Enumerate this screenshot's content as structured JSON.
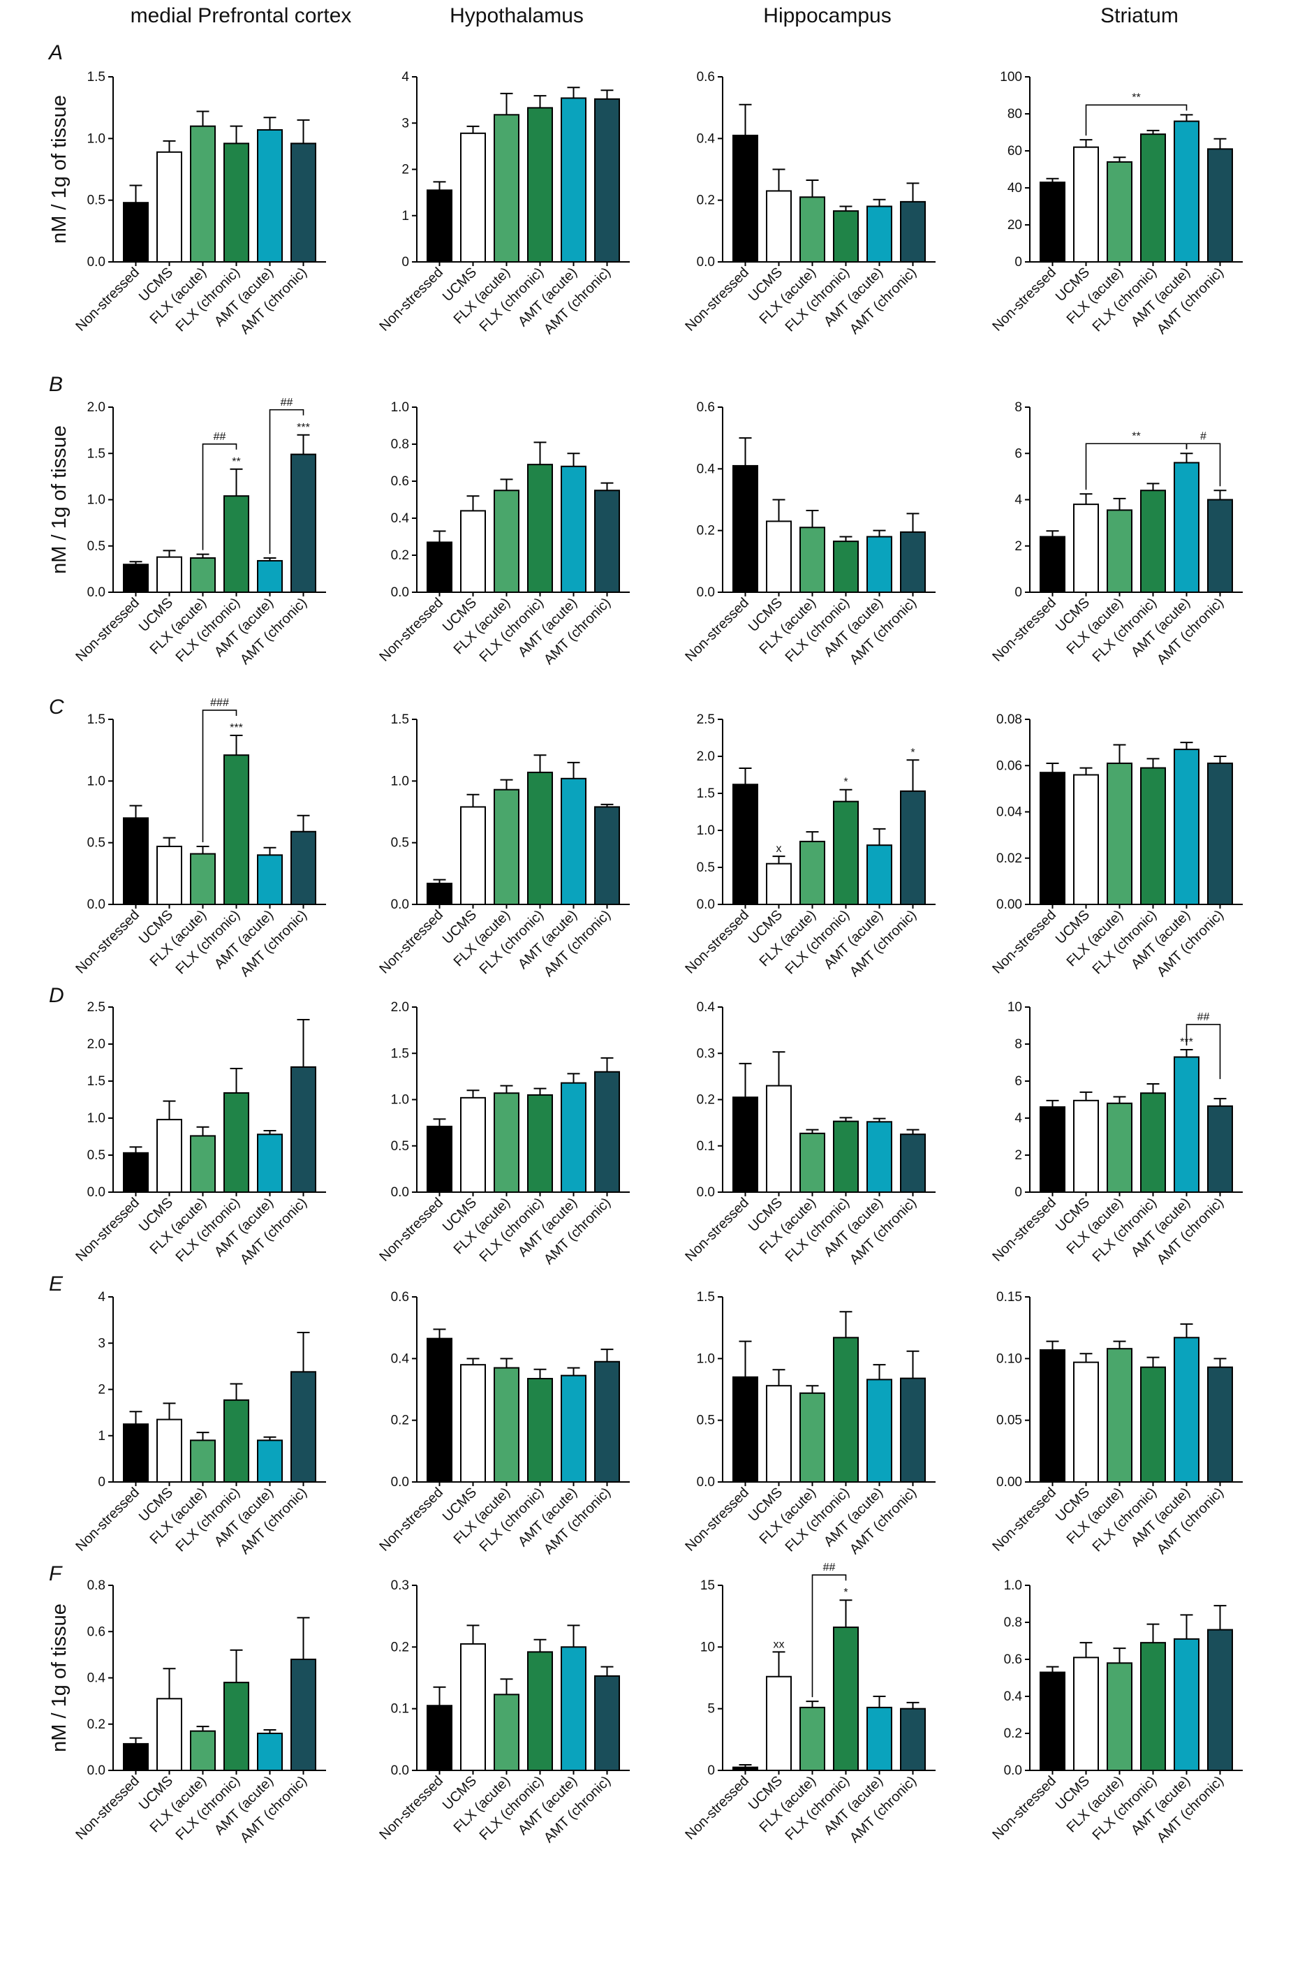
{
  "region_titles": [
    "medial Prefrontal cortex",
    "Hypothalamus",
    "Hippocampus",
    "Striatum"
  ],
  "ylabel": "nM / 1g of tissue",
  "colors": {
    "Non-stressed": "#000000",
    "UCMS": "#ffffff",
    "FLX (acute)": "#4aa66b",
    "FLX (chronic)": "#208448",
    "AMT (acute)": "#0aa3bd",
    "AMT (chronic)": "#1a4e5a"
  },
  "chart_data": [
    {
      "type": "bar",
      "row": "A",
      "region": "medial Prefrontal cortex",
      "ylabel": "nM / 1g of tissue",
      "categories": [
        "Non-stressed",
        "UCMS",
        "FLX (acute)",
        "FLX (chronic)",
        "AMT (acute)",
        "AMT (chronic)"
      ],
      "values": [
        0.48,
        0.89,
        1.1,
        0.96,
        1.07,
        0.96
      ],
      "errors": [
        0.14,
        0.09,
        0.12,
        0.14,
        0.1,
        0.19
      ],
      "ylim": [
        0,
        1.5
      ],
      "yticks": [
        "0.0",
        "0.5",
        "1.0",
        "1.5"
      ],
      "annotations": [],
      "brackets": []
    },
    {
      "type": "bar",
      "row": "A",
      "region": "Hypothalamus",
      "categories": [
        "Non-stressed",
        "UCMS",
        "FLX (acute)",
        "FLX (chronic)",
        "AMT (acute)",
        "AMT (chronic)"
      ],
      "values": [
        1.55,
        2.78,
        3.18,
        3.33,
        3.54,
        3.52
      ],
      "errors": [
        0.18,
        0.15,
        0.46,
        0.26,
        0.23,
        0.19
      ],
      "ylim": [
        0,
        4
      ],
      "yticks": [
        "0",
        "1",
        "2",
        "3",
        "4"
      ],
      "annotations": [],
      "brackets": []
    },
    {
      "type": "bar",
      "row": "A",
      "region": "Hippocampus",
      "categories": [
        "Non-stressed",
        "UCMS",
        "FLX (acute)",
        "FLX (chronic)",
        "AMT (acute)",
        "AMT (chronic)"
      ],
      "values": [
        0.41,
        0.23,
        0.21,
        0.165,
        0.18,
        0.195
      ],
      "errors": [
        0.1,
        0.07,
        0.055,
        0.015,
        0.022,
        0.06
      ],
      "ylim": [
        0,
        0.6
      ],
      "yticks": [
        "0.0",
        "0.2",
        "0.4",
        "0.6"
      ],
      "annotations": [],
      "brackets": []
    },
    {
      "type": "bar",
      "row": "A",
      "region": "Striatum",
      "categories": [
        "Non-stressed",
        "UCMS",
        "FLX (acute)",
        "FLX (chronic)",
        "AMT (acute)",
        "AMT (chronic)"
      ],
      "values": [
        43,
        62,
        54,
        69,
        76,
        61
      ],
      "errors": [
        2,
        4,
        2.5,
        2,
        3.5,
        5.5
      ],
      "ylim": [
        0,
        100
      ],
      "yticks": [
        "0",
        "20",
        "40",
        "60",
        "80",
        "100"
      ],
      "annotations": [],
      "brackets": [
        {
          "from": 1,
          "to": 4,
          "label": "**"
        }
      ]
    },
    {
      "type": "bar",
      "row": "B",
      "region": "medial Prefrontal cortex",
      "ylabel": "nM / 1g of tissue",
      "categories": [
        "Non-stressed",
        "UCMS",
        "FLX (acute)",
        "FLX (chronic)",
        "AMT (acute)",
        "AMT (chronic)"
      ],
      "values": [
        0.3,
        0.38,
        0.37,
        1.04,
        0.34,
        1.49
      ],
      "errors": [
        0.03,
        0.07,
        0.04,
        0.29,
        0.03,
        0.21
      ],
      "ylim": [
        0,
        2.0
      ],
      "yticks": [
        "0.0",
        "0.5",
        "1.0",
        "1.5",
        "2.0"
      ],
      "annotations": [
        {
          "bar": 3,
          "label": "**"
        },
        {
          "bar": 5,
          "label": "***"
        }
      ],
      "brackets": [
        {
          "from": 2,
          "to": 3,
          "label": "##"
        },
        {
          "from": 4,
          "to": 5,
          "label": "##"
        }
      ]
    },
    {
      "type": "bar",
      "row": "B",
      "region": "Hypothalamus",
      "categories": [
        "Non-stressed",
        "UCMS",
        "FLX (acute)",
        "FLX (chronic)",
        "AMT (acute)",
        "AMT (chronic)"
      ],
      "values": [
        0.27,
        0.44,
        0.55,
        0.69,
        0.68,
        0.55
      ],
      "errors": [
        0.06,
        0.08,
        0.06,
        0.12,
        0.07,
        0.04
      ],
      "ylim": [
        0,
        1.0
      ],
      "yticks": [
        "0.0",
        "0.2",
        "0.4",
        "0.6",
        "0.8",
        "1.0"
      ],
      "annotations": [],
      "brackets": []
    },
    {
      "type": "bar",
      "row": "B",
      "region": "Hippocampus",
      "categories": [
        "Non-stressed",
        "UCMS",
        "FLX (acute)",
        "FLX (chronic)",
        "AMT (acute)",
        "AMT (chronic)"
      ],
      "values": [
        0.41,
        0.23,
        0.21,
        0.165,
        0.18,
        0.195
      ],
      "errors": [
        0.09,
        0.07,
        0.055,
        0.015,
        0.02,
        0.06
      ],
      "ylim": [
        0,
        0.6
      ],
      "yticks": [
        "0.0",
        "0.2",
        "0.4",
        "0.6"
      ],
      "annotations": [],
      "brackets": []
    },
    {
      "type": "bar",
      "row": "B",
      "region": "Striatum",
      "categories": [
        "Non-stressed",
        "UCMS",
        "FLX (acute)",
        "FLX (chronic)",
        "AMT (acute)",
        "AMT (chronic)"
      ],
      "values": [
        2.4,
        3.8,
        3.55,
        4.4,
        5.6,
        4.0
      ],
      "errors": [
        0.25,
        0.45,
        0.5,
        0.3,
        0.4,
        0.4
      ],
      "ylim": [
        0,
        8
      ],
      "yticks": [
        "0",
        "2",
        "4",
        "6",
        "8"
      ],
      "annotations": [],
      "brackets": [
        {
          "from": 1,
          "to": 4,
          "label": "**"
        },
        {
          "from": 4,
          "to": 5,
          "label": "#"
        }
      ]
    },
    {
      "type": "bar",
      "row": "C",
      "region": "medial Prefrontal cortex",
      "categories": [
        "Non-stressed",
        "UCMS",
        "FLX (acute)",
        "FLX (chronic)",
        "AMT (acute)",
        "AMT (chronic)"
      ],
      "values": [
        0.7,
        0.47,
        0.41,
        1.21,
        0.4,
        0.59
      ],
      "errors": [
        0.1,
        0.07,
        0.06,
        0.16,
        0.06,
        0.13
      ],
      "ylim": [
        0,
        1.5
      ],
      "yticks": [
        "0.0",
        "0.5",
        "1.0",
        "1.5"
      ],
      "annotations": [
        {
          "bar": 3,
          "label": "***"
        }
      ],
      "brackets": [
        {
          "from": 2,
          "to": 3,
          "label": "###"
        }
      ]
    },
    {
      "type": "bar",
      "row": "C",
      "region": "Hypothalamus",
      "categories": [
        "Non-stressed",
        "UCMS",
        "FLX (acute)",
        "FLX (chronic)",
        "AMT (acute)",
        "AMT (chronic)"
      ],
      "values": [
        0.17,
        0.79,
        0.93,
        1.07,
        1.02,
        0.79
      ],
      "errors": [
        0.03,
        0.1,
        0.08,
        0.14,
        0.13,
        0.02
      ],
      "ylim": [
        0,
        1.5
      ],
      "yticks": [
        "0.0",
        "0.5",
        "1.0",
        "1.5"
      ],
      "annotations": [],
      "brackets": []
    },
    {
      "type": "bar",
      "row": "C",
      "region": "Hippocampus",
      "categories": [
        "Non-stressed",
        "UCMS",
        "FLX (acute)",
        "FLX (chronic)",
        "AMT (acute)",
        "AMT (chronic)"
      ],
      "values": [
        1.62,
        0.55,
        0.85,
        1.39,
        0.8,
        1.53
      ],
      "errors": [
        0.22,
        0.1,
        0.13,
        0.16,
        0.22,
        0.42
      ],
      "ylim": [
        0,
        2.5
      ],
      "yticks": [
        "0.0",
        "0.5",
        "1.0",
        "1.5",
        "2.0",
        "2.5"
      ],
      "annotations": [
        {
          "bar": 1,
          "label": "x"
        },
        {
          "bar": 3,
          "label": "*"
        },
        {
          "bar": 5,
          "label": "*"
        }
      ],
      "brackets": []
    },
    {
      "type": "bar",
      "row": "C",
      "region": "Striatum",
      "categories": [
        "Non-stressed",
        "UCMS",
        "FLX (acute)",
        "FLX (chronic)",
        "AMT (acute)",
        "AMT (chronic)"
      ],
      "values": [
        0.057,
        0.056,
        0.061,
        0.059,
        0.067,
        0.061
      ],
      "errors": [
        0.004,
        0.003,
        0.008,
        0.004,
        0.003,
        0.003
      ],
      "ylim": [
        0,
        0.08
      ],
      "yticks": [
        "0.00",
        "0.02",
        "0.04",
        "0.06",
        "0.08"
      ],
      "annotations": [],
      "brackets": []
    },
    {
      "type": "bar",
      "row": "D",
      "region": "medial Prefrontal cortex",
      "categories": [
        "Non-stressed",
        "UCMS",
        "FLX (acute)",
        "FLX (chronic)",
        "AMT (acute)",
        "AMT (chronic)"
      ],
      "values": [
        0.53,
        0.98,
        0.76,
        1.34,
        0.78,
        1.69
      ],
      "errors": [
        0.08,
        0.25,
        0.12,
        0.33,
        0.05,
        0.64
      ],
      "ylim": [
        0,
        2.5
      ],
      "yticks": [
        "0.0",
        "0.5",
        "1.0",
        "1.5",
        "2.0",
        "2.5"
      ],
      "annotations": [],
      "brackets": []
    },
    {
      "type": "bar",
      "row": "D",
      "region": "Hypothalamus",
      "categories": [
        "Non-stressed",
        "UCMS",
        "FLX (acute)",
        "FLX (chronic)",
        "AMT (acute)",
        "AMT (chronic)"
      ],
      "values": [
        0.71,
        1.02,
        1.07,
        1.05,
        1.18,
        1.3
      ],
      "errors": [
        0.08,
        0.08,
        0.08,
        0.07,
        0.1,
        0.15
      ],
      "ylim": [
        0,
        2.0
      ],
      "yticks": [
        "0.0",
        "0.5",
        "1.0",
        "1.5",
        "2.0"
      ],
      "annotations": [],
      "brackets": []
    },
    {
      "type": "bar",
      "row": "D",
      "region": "Hippocampus",
      "categories": [
        "Non-stressed",
        "UCMS",
        "FLX (acute)",
        "FLX (chronic)",
        "AMT (acute)",
        "AMT (chronic)"
      ],
      "values": [
        0.205,
        0.23,
        0.127,
        0.153,
        0.152,
        0.125
      ],
      "errors": [
        0.073,
        0.073,
        0.008,
        0.008,
        0.007,
        0.01
      ],
      "ylim": [
        0,
        0.4
      ],
      "yticks": [
        "0.0",
        "0.1",
        "0.2",
        "0.3",
        "0.4"
      ],
      "annotations": [],
      "brackets": []
    },
    {
      "type": "bar",
      "row": "D",
      "region": "Striatum",
      "categories": [
        "Non-stressed",
        "UCMS",
        "FLX (acute)",
        "FLX (chronic)",
        "AMT (acute)",
        "AMT (chronic)"
      ],
      "values": [
        4.6,
        4.95,
        4.8,
        5.35,
        7.3,
        4.65
      ],
      "errors": [
        0.35,
        0.45,
        0.35,
        0.5,
        0.4,
        0.4
      ],
      "ylim": [
        0,
        10
      ],
      "yticks": [
        "0",
        "2",
        "4",
        "6",
        "8",
        "10"
      ],
      "annotations": [
        {
          "bar": 4,
          "label": "***"
        }
      ],
      "brackets": [
        {
          "from": 4,
          "to": 5,
          "label": "##"
        }
      ]
    },
    {
      "type": "bar",
      "row": "E",
      "region": "medial Prefrontal cortex",
      "categories": [
        "Non-stressed",
        "UCMS",
        "FLX (acute)",
        "FLX (chronic)",
        "AMT (acute)",
        "AMT (chronic)"
      ],
      "values": [
        1.25,
        1.35,
        0.9,
        1.77,
        0.9,
        2.38
      ],
      "errors": [
        0.27,
        0.35,
        0.17,
        0.35,
        0.07,
        0.85
      ],
      "ylim": [
        0,
        4
      ],
      "yticks": [
        "0",
        "1",
        "2",
        "3",
        "4"
      ],
      "annotations": [],
      "brackets": []
    },
    {
      "type": "bar",
      "row": "E",
      "region": "Hypothalamus",
      "categories": [
        "Non-stressed",
        "UCMS",
        "FLX (acute)",
        "FLX (chronic)",
        "AMT (acute)",
        "AMT (chronic)"
      ],
      "values": [
        0.465,
        0.38,
        0.37,
        0.335,
        0.345,
        0.39
      ],
      "errors": [
        0.03,
        0.02,
        0.03,
        0.03,
        0.025,
        0.04
      ],
      "ylim": [
        0,
        0.6
      ],
      "yticks": [
        "0.0",
        "0.2",
        "0.4",
        "0.6"
      ],
      "annotations": [],
      "brackets": []
    },
    {
      "type": "bar",
      "row": "E",
      "region": "Hippocampus",
      "categories": [
        "Non-stressed",
        "UCMS",
        "FLX (acute)",
        "FLX (chronic)",
        "AMT (acute)",
        "AMT (chronic)"
      ],
      "values": [
        0.85,
        0.78,
        0.72,
        1.17,
        0.83,
        0.84
      ],
      "errors": [
        0.29,
        0.13,
        0.06,
        0.21,
        0.12,
        0.22
      ],
      "ylim": [
        0,
        1.5
      ],
      "yticks": [
        "0.0",
        "0.5",
        "1.0",
        "1.5"
      ],
      "annotations": [],
      "brackets": []
    },
    {
      "type": "bar",
      "row": "E",
      "region": "Striatum",
      "categories": [
        "Non-stressed",
        "UCMS",
        "FLX (acute)",
        "FLX (chronic)",
        "AMT (acute)",
        "AMT (chronic)"
      ],
      "values": [
        0.107,
        0.097,
        0.108,
        0.093,
        0.117,
        0.093
      ],
      "errors": [
        0.007,
        0.007,
        0.006,
        0.008,
        0.011,
        0.007
      ],
      "ylim": [
        0,
        0.15
      ],
      "yticks": [
        "0.00",
        "0.05",
        "0.10",
        "0.15"
      ],
      "annotations": [],
      "brackets": []
    },
    {
      "type": "bar",
      "row": "F",
      "region": "medial Prefrontal cortex",
      "ylabel": "nM / 1g of tissue",
      "categories": [
        "Non-stressed",
        "UCMS",
        "FLX (acute)",
        "FLX (chronic)",
        "AMT (acute)",
        "AMT (chronic)"
      ],
      "values": [
        0.115,
        0.31,
        0.17,
        0.38,
        0.16,
        0.48
      ],
      "errors": [
        0.025,
        0.13,
        0.02,
        0.14,
        0.015,
        0.18
      ],
      "ylim": [
        0,
        0.8
      ],
      "yticks": [
        "0.0",
        "0.2",
        "0.4",
        "0.6",
        "0.8"
      ],
      "annotations": [],
      "brackets": []
    },
    {
      "type": "bar",
      "row": "F",
      "region": "Hypothalamus",
      "categories": [
        "Non-stressed",
        "UCMS",
        "FLX (acute)",
        "FLX (chronic)",
        "AMT (acute)",
        "AMT (chronic)"
      ],
      "values": [
        0.105,
        0.205,
        0.123,
        0.192,
        0.2,
        0.153
      ],
      "errors": [
        0.03,
        0.03,
        0.025,
        0.02,
        0.035,
        0.015
      ],
      "ylim": [
        0,
        0.3
      ],
      "yticks": [
        "0.0",
        "0.1",
        "0.2",
        "0.3"
      ],
      "annotations": [],
      "brackets": []
    },
    {
      "type": "bar",
      "row": "F",
      "region": "Hippocampus",
      "categories": [
        "Non-stressed",
        "UCMS",
        "FLX (acute)",
        "FLX (chronic)",
        "AMT (acute)",
        "AMT (chronic)"
      ],
      "values": [
        0.25,
        7.6,
        5.1,
        11.6,
        5.1,
        5.0
      ],
      "errors": [
        0.2,
        2.0,
        0.5,
        2.2,
        0.9,
        0.5
      ],
      "ylim": [
        0,
        15
      ],
      "yticks": [
        "0",
        "5",
        "10",
        "15"
      ],
      "annotations": [
        {
          "bar": 1,
          "label": "xx"
        },
        {
          "bar": 3,
          "label": "*"
        }
      ],
      "brackets": [
        {
          "from": 2,
          "to": 3,
          "label": "##"
        }
      ]
    },
    {
      "type": "bar",
      "row": "F",
      "region": "Striatum",
      "categories": [
        "Non-stressed",
        "UCMS",
        "FLX (acute)",
        "FLX (chronic)",
        "AMT (acute)",
        "AMT (chronic)"
      ],
      "values": [
        0.53,
        0.61,
        0.58,
        0.69,
        0.71,
        0.76
      ],
      "errors": [
        0.03,
        0.08,
        0.08,
        0.1,
        0.13,
        0.13
      ],
      "ylim": [
        0,
        1.0
      ],
      "yticks": [
        "0.0",
        "0.2",
        "0.4",
        "0.6",
        "0.8",
        "1.0"
      ],
      "annotations": [],
      "brackets": []
    }
  ]
}
